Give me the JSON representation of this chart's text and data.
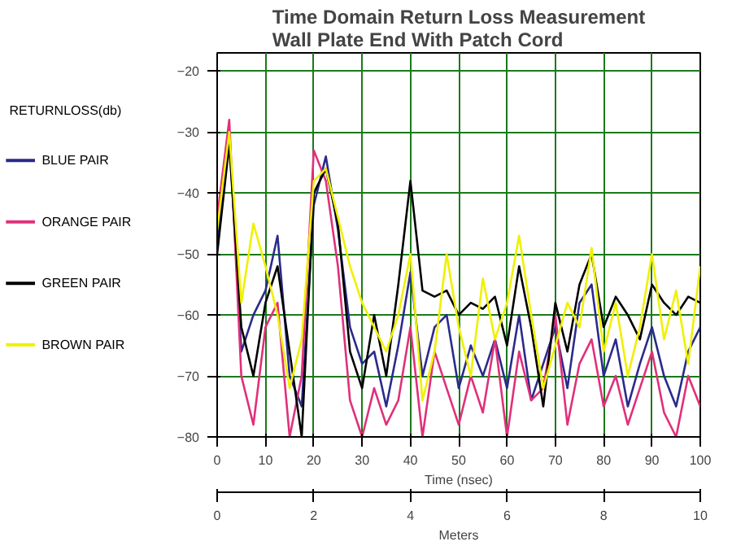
{
  "chart_data": {
    "type": "line",
    "title": "Time Domain Return Loss Measurement\nWall Plate End With Patch Cord",
    "xlabel": "Time (nsec)",
    "ylabel": "RETURNLOSS(db)",
    "x2label": "Meters",
    "x": [
      0,
      2.5,
      5,
      7.5,
      10,
      12.5,
      15,
      17.5,
      20,
      22.5,
      25,
      27.5,
      30,
      32.5,
      35,
      37.5,
      40,
      42.5,
      45,
      47.5,
      50,
      52.5,
      55,
      57.5,
      60,
      62.5,
      65,
      67.5,
      70,
      72.5,
      75,
      77.5,
      80,
      82.5,
      85,
      87.5,
      90,
      92.5,
      95,
      97.5,
      100
    ],
    "series": [
      {
        "name": "BLUE PAIR",
        "color": "#2a2a8c",
        "values": [
          -48,
          -30,
          -66,
          -60,
          -56,
          -47,
          -70,
          -75,
          -42,
          -34,
          -46,
          -62,
          -68,
          -66,
          -75,
          -65,
          -53,
          -70,
          -62,
          -60,
          -72,
          -65,
          -70,
          -64,
          -72,
          -60,
          -74,
          -68,
          -62,
          -72,
          -58,
          -55,
          -70,
          -64,
          -75,
          -68,
          -62,
          -70,
          -75,
          -66,
          -62
        ]
      },
      {
        "name": "ORANGE PAIR",
        "color": "#e0307a",
        "values": [
          -44,
          -28,
          -70,
          -78,
          -62,
          -58,
          -80,
          -70,
          -33,
          -38,
          -52,
          -74,
          -80,
          -72,
          -78,
          -74,
          -62,
          -80,
          -66,
          -72,
          -78,
          -70,
          -76,
          -64,
          -80,
          -66,
          -74,
          -72,
          -60,
          -78,
          -68,
          -64,
          -75,
          -70,
          -78,
          -72,
          -66,
          -76,
          -80,
          -70,
          -75
        ]
      },
      {
        "name": "GREEN PAIR",
        "color": "#000000",
        "values": [
          -50,
          -32,
          -62,
          -70,
          -58,
          -52,
          -66,
          -80,
          -40,
          -36,
          -45,
          -66,
          -72,
          -60,
          -70,
          -55,
          -38,
          -56,
          -57,
          -56,
          -60,
          -58,
          -59,
          -57,
          -65,
          -52,
          -62,
          -75,
          -58,
          -66,
          -55,
          -50,
          -62,
          -57,
          -60,
          -64,
          -55,
          -58,
          -60,
          -57,
          -58
        ]
      },
      {
        "name": "BROWN PAIR",
        "color": "#f0f000",
        "values": [
          -46,
          -30,
          -58,
          -45,
          -52,
          -60,
          -72,
          -64,
          -38,
          -36,
          -44,
          -52,
          -58,
          -62,
          -66,
          -60,
          -50,
          -74,
          -66,
          -50,
          -62,
          -70,
          -54,
          -64,
          -58,
          -47,
          -60,
          -72,
          -65,
          -58,
          -62,
          -49,
          -66,
          -58,
          -70,
          -62,
          -50,
          -64,
          -56,
          -68,
          -52
        ]
      }
    ],
    "xlim": [
      0,
      100
    ],
    "xticks": [
      0,
      10,
      20,
      30,
      40,
      50,
      60,
      70,
      80,
      90,
      100
    ],
    "x2lim": [
      0,
      10
    ],
    "x2ticks": [
      0,
      2,
      4,
      6,
      8,
      10
    ],
    "ylim": [
      -80,
      -17
    ],
    "yticks": [
      -20,
      -30,
      -40,
      -50,
      -60,
      -70,
      -80
    ],
    "grid": true,
    "legend": "left",
    "line_style": "solid"
  }
}
